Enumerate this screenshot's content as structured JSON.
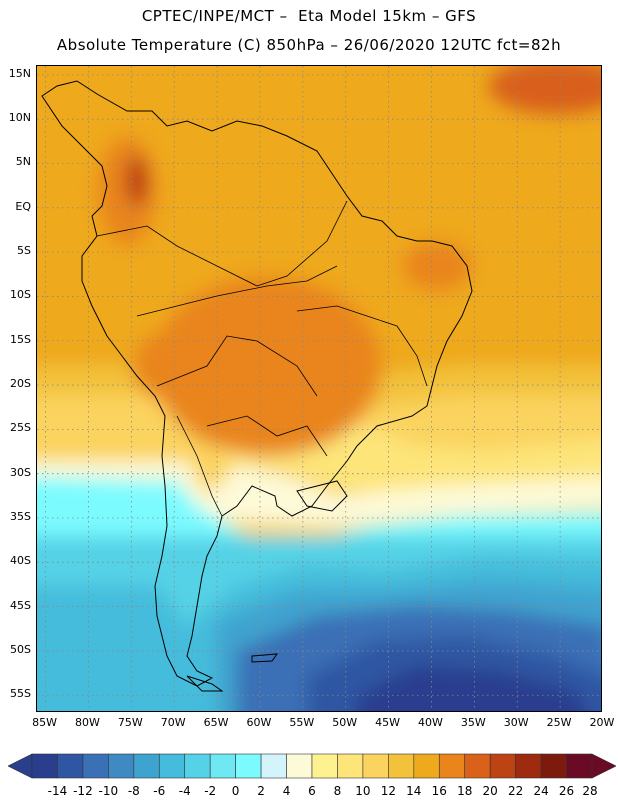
{
  "header": {
    "title": "CPTEC/INPE/MCT –  Eta Model 15km – GFS",
    "subtitle": "Absolute Temperature (C) 850hPa – 26/06/2020 12UTC fct=82h"
  },
  "map": {
    "region": "South America",
    "variable": "Absolute Temperature (C) 850hPa",
    "lat_labels": [
      "15N",
      "10N",
      "5N",
      "EQ",
      "5S",
      "10S",
      "15S",
      "20S",
      "25S",
      "30S",
      "35S",
      "40S",
      "45S",
      "50S",
      "55S"
    ],
    "lon_labels": [
      "85W",
      "80W",
      "75W",
      "70W",
      "65W",
      "60W",
      "55W",
      "50W",
      "45W",
      "40W",
      "35W",
      "30W",
      "25W",
      "20W"
    ],
    "lat_range": [
      -57,
      16
    ],
    "lon_range": [
      -86,
      -20
    ],
    "grid": "dotted"
  },
  "colorbar": {
    "labels": [
      "-14",
      "-12",
      "-10",
      "-8",
      "-6",
      "-4",
      "-2",
      "0",
      "2",
      "4",
      "6",
      "8",
      "10",
      "12",
      "14",
      "16",
      "18",
      "20",
      "22",
      "24",
      "26",
      "28"
    ],
    "colors": [
      "#2a3e8e",
      "#2f56a3",
      "#3a70b6",
      "#3f8ac3",
      "#3fa3cf",
      "#45bcdb",
      "#55d2e6",
      "#6ee8f3",
      "#7cfbff",
      "#d4f4fc",
      "#fdfad8",
      "#fdf28f",
      "#fde57a",
      "#fbd35f",
      "#f3c23b",
      "#efa91c",
      "#e9851b",
      "#d9611a",
      "#bd4314",
      "#9e2a10",
      "#7c1a0d",
      "#6a0a25"
    ],
    "arrow_left_color": "#2a3e8e",
    "arrow_right_color": "#6a0a25"
  }
}
